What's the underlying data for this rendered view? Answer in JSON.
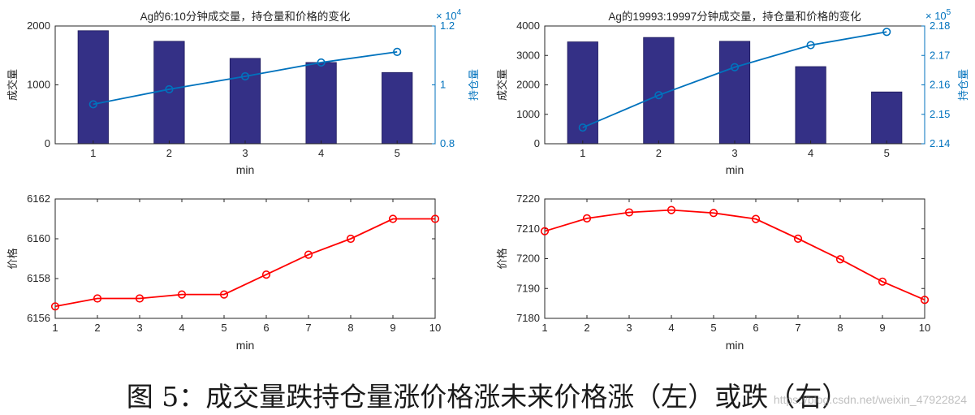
{
  "caption": "图 5：成交量跌持仓量涨价格涨未来价格涨（左）或跌（右）",
  "watermark": "https://blog.csdn.net/weixin_47922824",
  "colors": {
    "bar": "#343086",
    "oi_line": "#0072BD",
    "price_line": "#FF0000",
    "axis": "#262626"
  },
  "chart_data": [
    {
      "id": "vol-oi-left",
      "type": "bar+line",
      "title": "Ag的6:10分钟成交量，持仓量和价格的变化",
      "xlabel": "min",
      "ylabel_left": "成交量",
      "ylabel_right": "持仓量",
      "exponent_right": "× 10^4",
      "x": [
        1,
        2,
        3,
        4,
        5
      ],
      "x_ticks": [
        "1",
        "2",
        "3",
        "4",
        "5"
      ],
      "xlim": [
        0.5,
        5.5
      ],
      "volume": [
        1920,
        1740,
        1450,
        1380,
        1210
      ],
      "ylim_left": [
        0,
        2000
      ],
      "yticks_left": [
        "0",
        "1000",
        "2000"
      ],
      "open_interest": [
        0.934,
        0.985,
        1.029,
        1.076,
        1.112
      ],
      "ylim_right": [
        0.8,
        1.2
      ],
      "yticks_right": [
        "0.8",
        "1",
        "1.2"
      ]
    },
    {
      "id": "vol-oi-right",
      "type": "bar+line",
      "title": "Ag的19993:19997分钟成交量，持仓量和价格的变化",
      "xlabel": "min",
      "ylabel_left": "成交量",
      "ylabel_right": "持仓量",
      "exponent_right": "× 10^5",
      "x": [
        1,
        2,
        3,
        4,
        5
      ],
      "x_ticks": [
        "1",
        "2",
        "3",
        "4",
        "5"
      ],
      "xlim": [
        0.5,
        5.5
      ],
      "volume": [
        3460,
        3610,
        3480,
        2620,
        1760
      ],
      "ylim_left": [
        0,
        4000
      ],
      "yticks_left": [
        "0",
        "1000",
        "2000",
        "3000",
        "4000"
      ],
      "open_interest": [
        2.1455,
        2.1565,
        2.166,
        2.1735,
        2.178
      ],
      "ylim_right": [
        2.14,
        2.18
      ],
      "yticks_right": [
        "2.14",
        "2.15",
        "2.16",
        "2.17",
        "2.18"
      ]
    },
    {
      "id": "price-left",
      "type": "line",
      "xlabel": "min",
      "ylabel": "价格",
      "x": [
        1,
        2,
        3,
        4,
        5,
        6,
        7,
        8,
        9,
        10
      ],
      "x_ticks": [
        "1",
        "2",
        "3",
        "4",
        "5",
        "6",
        "7",
        "8",
        "9",
        "10"
      ],
      "xlim": [
        1,
        10
      ],
      "values": [
        6156.6,
        6157.0,
        6157.0,
        6157.2,
        6157.2,
        6158.2,
        6159.2,
        6160.0,
        6161.0,
        6161.0
      ],
      "ylim": [
        6156,
        6162
      ],
      "yticks": [
        "6156",
        "6158",
        "6160",
        "6162"
      ]
    },
    {
      "id": "price-right",
      "type": "line",
      "xlabel": "min",
      "ylabel": "价格",
      "x": [
        1,
        2,
        3,
        4,
        5,
        6,
        7,
        8,
        9,
        10
      ],
      "x_ticks": [
        "1",
        "2",
        "3",
        "4",
        "5",
        "6",
        "7",
        "8",
        "9",
        "10"
      ],
      "xlim": [
        1,
        10
      ],
      "values": [
        7209.2,
        7213.5,
        7215.5,
        7216.3,
        7215.3,
        7213.3,
        7206.7,
        7199.8,
        7192.3,
        7186.2
      ],
      "ylim": [
        7180,
        7220
      ],
      "yticks": [
        "7180",
        "7190",
        "7200",
        "7210",
        "7220"
      ]
    }
  ]
}
